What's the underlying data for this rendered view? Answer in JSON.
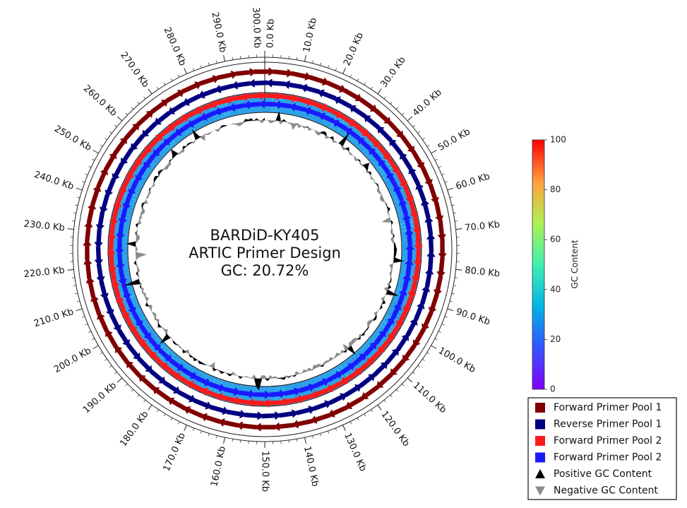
{
  "title_lines": [
    "BARDiD-KY405",
    "ARTIC Primer Design",
    "GC: 20.72%"
  ],
  "genome_length_kb": 300,
  "scale": {
    "tick_step_kb": 10,
    "tick_labels": [
      "0.0 Kb",
      "10.0 Kb",
      "20.0 Kb",
      "30.0 Kb",
      "40.0 Kb",
      "50.0 Kb",
      "60.0 Kb",
      "70.0 Kb",
      "80.0 Kb",
      "90.0 Kb",
      "100.0 Kb",
      "110.0 Kb",
      "120.0 Kb",
      "130.0 Kb",
      "140.0 Kb",
      "150.0 Kb",
      "160.0 Kb",
      "170.0 Kb",
      "180.0 Kb",
      "190.0 Kb",
      "200.0 Kb",
      "210.0 Kb",
      "220.0 Kb",
      "230.0 Kb",
      "240.0 Kb",
      "250.0 Kb",
      "260.0 Kb",
      "270.0 Kb",
      "280.0 Kb",
      "290.0 Kb",
      "300.0 Kb"
    ]
  },
  "colors": {
    "forward_pool_1": "#800000",
    "reverse_pool_1": "#000080",
    "forward_pool_2_red": "#ff1a1a",
    "forward_pool_2_blue": "#1a1aff",
    "gc_positive": "#000000",
    "gc_negative": "#8c8c8c",
    "gc_ring": "#2aa0e6"
  },
  "colorbar": {
    "title": "GC Content",
    "min": 0,
    "max": 100,
    "tick_labels": [
      "0",
      "20",
      "40",
      "60",
      "80",
      "100"
    ],
    "colormap": "rainbow"
  },
  "legend": {
    "items": [
      {
        "label": "Forward Primer Pool 1",
        "marker": "square",
        "color_key": "forward_pool_1"
      },
      {
        "label": "Reverse Primer Pool 1",
        "marker": "square",
        "color_key": "reverse_pool_1"
      },
      {
        "label": "Forward Primer Pool 2",
        "marker": "square",
        "color_key": "forward_pool_2_red"
      },
      {
        "label": "Forward Primer Pool 2",
        "marker": "square",
        "color_key": "forward_pool_2_blue"
      },
      {
        "label": "Positive GC Content",
        "marker": "triangle-up",
        "color_key": "gc_positive"
      },
      {
        "label": "Negative GC Content",
        "marker": "triangle-down",
        "color_key": "gc_negative"
      }
    ]
  },
  "primer_tracks": {
    "amplicon_count": 120,
    "outer_track": "pool_1",
    "inner_track": "pool_2"
  },
  "gc_skew_track": {
    "sample_count": 300
  }
}
